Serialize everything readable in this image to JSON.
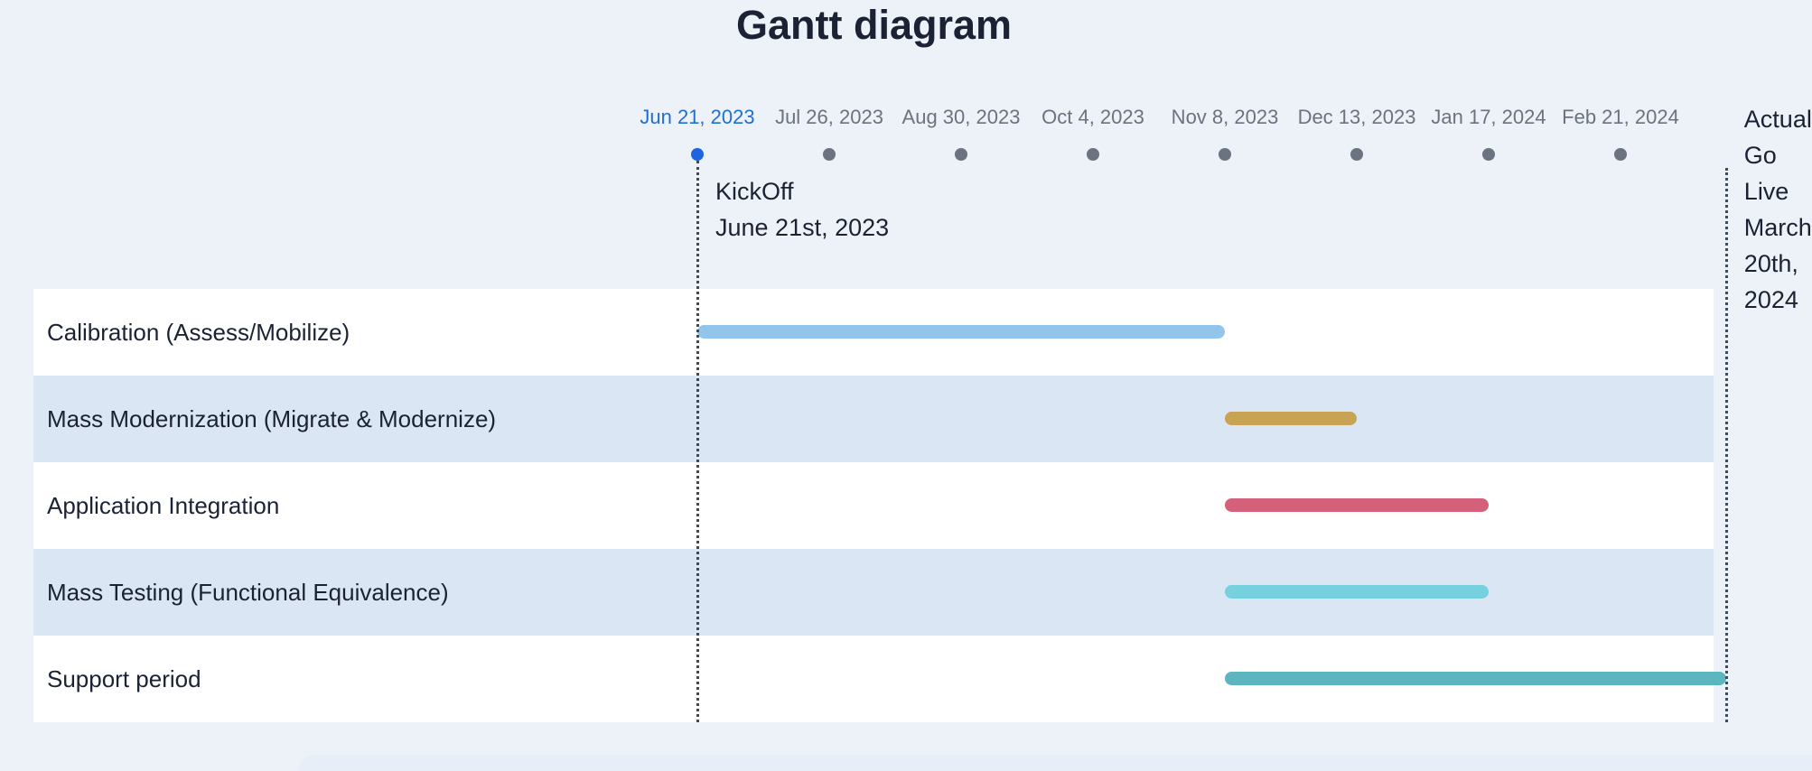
{
  "title": "Gantt diagram",
  "chart_data": {
    "type": "gantt",
    "title": "Gantt diagram",
    "x_axis": {
      "ticks": [
        "Jun 21, 2023",
        "Jul 26, 2023",
        "Aug 30, 2023",
        "Oct 4, 2023",
        "Nov 8, 2023",
        "Dec 13, 2023",
        "Jan 17, 2024",
        "Feb 21, 2024"
      ],
      "active_tick": "Jun 21, 2023",
      "range": [
        "2023-06-21",
        "2024-03-20"
      ]
    },
    "tasks": [
      {
        "name": "Calibration (Assess/Mobilize)",
        "start": "2023-06-21",
        "end": "2023-11-08",
        "color": "#93c4ea"
      },
      {
        "name": "Mass Modernization (Migrate & Modernize)",
        "start": "2023-11-08",
        "end": "2023-12-13",
        "color": "#c8a354"
      },
      {
        "name": "Application Integration",
        "start": "2023-11-08",
        "end": "2024-01-17",
        "color": "#d4607a"
      },
      {
        "name": "Mass Testing (Functional Equivalence)",
        "start": "2023-11-08",
        "end": "2024-01-17",
        "color": "#76d0de"
      },
      {
        "name": "Support period",
        "start": "2023-11-08",
        "end": "2024-03-20",
        "color": "#5db5c0"
      }
    ],
    "milestones": [
      {
        "date": "2023-06-21",
        "lines": [
          "KickOff",
          "June 21st, 2023"
        ]
      },
      {
        "date": "2024-03-20",
        "lines": [
          "Actual",
          "Go",
          "Live",
          "March",
          "20th,",
          "2024"
        ]
      }
    ]
  }
}
